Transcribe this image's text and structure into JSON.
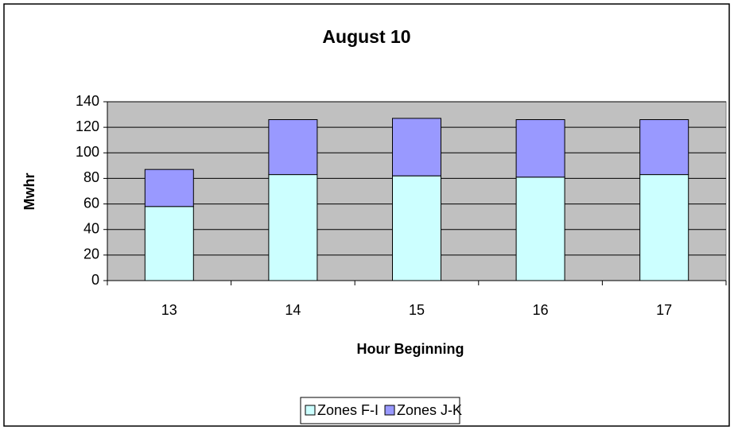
{
  "chart_data": {
    "type": "stacked_bar",
    "title": "August 10",
    "x_label": "Hour Beginning",
    "y_label": "Mwhr",
    "categories": [
      "13",
      "14",
      "15",
      "16",
      "17"
    ],
    "series": [
      {
        "name": "Zones F-I",
        "color": "#ccffff",
        "values": [
          58,
          83,
          82,
          81,
          83
        ]
      },
      {
        "name": "Zones J-K",
        "color": "#9999ff",
        "values": [
          29,
          43,
          45,
          45,
          43
        ]
      }
    ],
    "ylim": [
      0,
      140
    ],
    "yticks": [
      0,
      20,
      40,
      60,
      80,
      100,
      120,
      140
    ],
    "grid": true,
    "legend": "bottom"
  }
}
